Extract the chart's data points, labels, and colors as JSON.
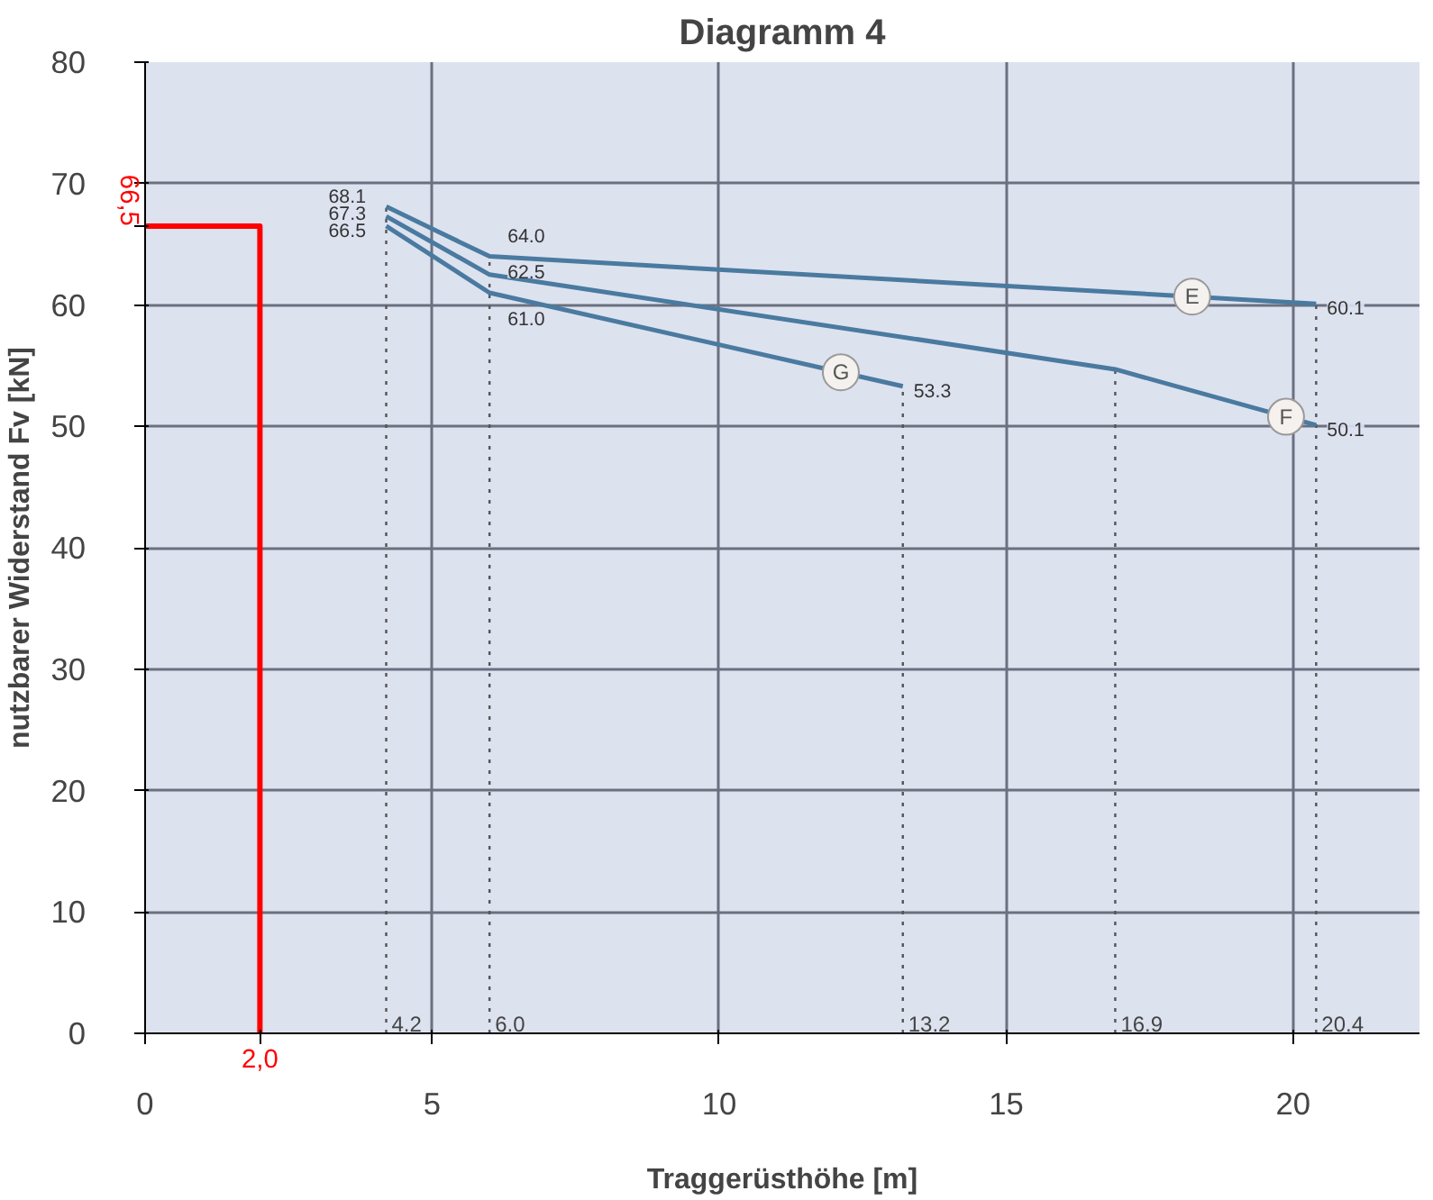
{
  "chart_data": {
    "type": "line",
    "title": "Diagramm 4",
    "xlabel": "Traggerüsthöhe [m]",
    "ylabel": "nutzbarer Widerstand Fv [kN]",
    "xlim": [
      0,
      22.2
    ],
    "ylim": [
      0,
      80
    ],
    "xticks": [
      0,
      5,
      10,
      15,
      20
    ],
    "yticks": [
      0,
      10,
      20,
      30,
      40,
      50,
      60,
      70,
      80
    ],
    "grid": true,
    "marker": "none",
    "line_style": "solid",
    "series": [
      {
        "name": "E",
        "color": "#4a7aa0",
        "x": [
          4.2,
          6.0,
          20.4
        ],
        "values": [
          68.1,
          64.0,
          60.1
        ],
        "value_labels": [
          "68.1",
          "64.0",
          "60.1"
        ]
      },
      {
        "name": "F",
        "color": "#4a7aa0",
        "x": [
          4.2,
          6.0,
          16.9,
          20.4
        ],
        "values": [
          67.3,
          62.5,
          54.7,
          50.1
        ],
        "value_labels": [
          "67.3",
          "62.5",
          null,
          "50.1"
        ]
      },
      {
        "name": "G",
        "color": "#4a7aa0",
        "x": [
          4.2,
          6.0,
          13.2
        ],
        "values": [
          66.5,
          61.0,
          53.3
        ],
        "value_labels": [
          "66.5",
          "61.0",
          "53.3"
        ]
      },
      {
        "color": "#ff0000",
        "x": [
          0,
          2.0,
          2.0
        ],
        "values": [
          66.5,
          66.5,
          0
        ]
      }
    ],
    "annotations": [
      {
        "text": "66,5",
        "x": 0,
        "y": 66.5
      },
      {
        "text": "2,0",
        "x": 2.0,
        "y": 0
      }
    ],
    "ref_lines": [
      {
        "axis": "x",
        "value": 4.2,
        "label": "4.2",
        "line_style": "dotted"
      },
      {
        "axis": "x",
        "value": 6.0,
        "label": "6.0",
        "line_style": "dotted"
      },
      {
        "axis": "x",
        "value": 13.2,
        "label": "13.2",
        "line_style": "dotted"
      },
      {
        "axis": "x",
        "value": 16.9,
        "label": "16.9",
        "line_style": "dotted"
      },
      {
        "axis": "x",
        "value": 20.4,
        "label": "20.4",
        "line_style": "dotted"
      }
    ]
  }
}
